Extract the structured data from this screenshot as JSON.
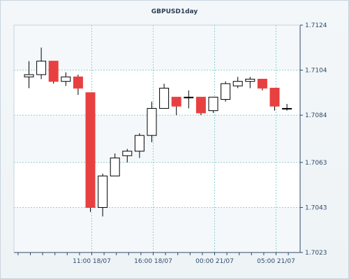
{
  "chart_data": {
    "type": "candlestick",
    "title": "GBPUSD1day",
    "xlabel": "",
    "ylabel": "",
    "ylim": [
      1.7023,
      1.7124
    ],
    "y_ticks": [
      "1.7124",
      "1.7104",
      "1.7084",
      "1.7063",
      "1.7043",
      "1.7023"
    ],
    "y_tick_values": [
      1.7124,
      1.7104,
      1.7084,
      1.7063,
      1.7043,
      1.7023
    ],
    "x_tick_labels": [
      "11:00 18/07",
      "16:00 18/07",
      "00:00 21/07",
      "05:00 21/07"
    ],
    "x_tick_candle_index": [
      5,
      10,
      15,
      20
    ],
    "grid": true,
    "colors": {
      "bull": "#ffffff",
      "bear": "#e84040",
      "outline": "#000000",
      "grid": "#8fd0d0"
    },
    "candles": [
      {
        "open": 1.7101,
        "high": 1.7108,
        "low": 1.7096,
        "close": 1.7102
      },
      {
        "open": 1.7102,
        "high": 1.7114,
        "low": 1.71,
        "close": 1.7108
      },
      {
        "open": 1.7108,
        "high": 1.7108,
        "low": 1.7098,
        "close": 1.7099
      },
      {
        "open": 1.7099,
        "high": 1.7103,
        "low": 1.7097,
        "close": 1.7101
      },
      {
        "open": 1.7101,
        "high": 1.7102,
        "low": 1.7093,
        "close": 1.7096
      },
      {
        "open": 1.7094,
        "high": 1.7094,
        "low": 1.7041,
        "close": 1.7043
      },
      {
        "open": 1.7043,
        "high": 1.7058,
        "low": 1.7039,
        "close": 1.7057
      },
      {
        "open": 1.7057,
        "high": 1.7067,
        "low": 1.7057,
        "close": 1.7065
      },
      {
        "open": 1.7066,
        "high": 1.7069,
        "low": 1.7063,
        "close": 1.7068
      },
      {
        "open": 1.7068,
        "high": 1.7076,
        "low": 1.7065,
        "close": 1.7075
      },
      {
        "open": 1.7075,
        "high": 1.709,
        "low": 1.7072,
        "close": 1.7087
      },
      {
        "open": 1.7087,
        "high": 1.7098,
        "low": 1.7087,
        "close": 1.7096
      },
      {
        "open": 1.7092,
        "high": 1.7092,
        "low": 1.7084,
        "close": 1.7088
      },
      {
        "open": 1.7092,
        "high": 1.7095,
        "low": 1.7087,
        "close": 1.7092
      },
      {
        "open": 1.7092,
        "high": 1.7092,
        "low": 1.7084,
        "close": 1.7085
      },
      {
        "open": 1.7086,
        "high": 1.7092,
        "low": 1.7085,
        "close": 1.7092
      },
      {
        "open": 1.7091,
        "high": 1.7099,
        "low": 1.709,
        "close": 1.7098
      },
      {
        "open": 1.7097,
        "high": 1.7101,
        "low": 1.7096,
        "close": 1.7099
      },
      {
        "open": 1.7099,
        "high": 1.7101,
        "low": 1.7096,
        "close": 1.71
      },
      {
        "open": 1.71,
        "high": 1.71,
        "low": 1.7095,
        "close": 1.7096
      },
      {
        "open": 1.7096,
        "high": 1.7096,
        "low": 1.7086,
        "close": 1.7088
      },
      {
        "open": 1.7087,
        "high": 1.7089,
        "low": 1.7086,
        "close": 1.7087
      }
    ]
  }
}
